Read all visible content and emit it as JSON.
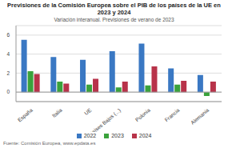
{
  "chart_data": {
    "type": "bar",
    "title": "Previsiones de la Comisión Europea sobre el PIB de los países de la UE en 2023 y 2024",
    "subtitle": "Variación interanual. Previsiones de verano de 2023",
    "source": "Fuente: Comisión Europea, www.epdata.es",
    "categories": [
      "España",
      "Italia",
      "UE",
      "Países Bajos (...)",
      "Polonia",
      "Francia",
      "Alemania"
    ],
    "series": [
      {
        "name": "2022",
        "color": "#3a78c3",
        "values": [
          5.5,
          3.7,
          3.4,
          4.3,
          5.1,
          2.5,
          1.8
        ]
      },
      {
        "name": "2023",
        "color": "#3aa23c",
        "values": [
          2.2,
          1.1,
          0.8,
          0.5,
          0.7,
          0.8,
          -0.4
        ]
      },
      {
        "name": "2024",
        "color": "#b8334a",
        "values": [
          1.9,
          0.9,
          1.4,
          1.1,
          2.7,
          1.2,
          1.1
        ]
      }
    ],
    "ylim": [
      -1,
      7
    ],
    "yticks": [
      0,
      2,
      4,
      6
    ],
    "grid": true,
    "legend": "bottom"
  }
}
